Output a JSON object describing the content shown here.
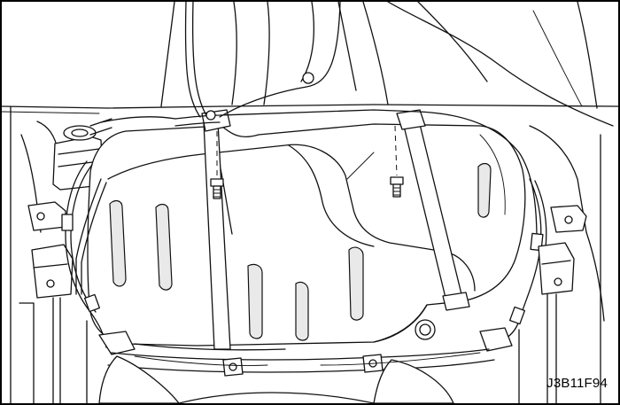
{
  "figure": {
    "code": "J3B11F94"
  },
  "icons": {
    "left_bolt": "bolt-icon",
    "right_bolt": "bolt-icon"
  }
}
